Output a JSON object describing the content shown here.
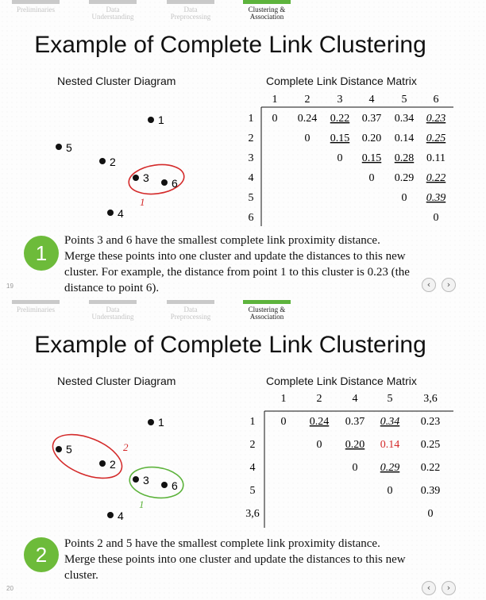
{
  "nav": {
    "items": [
      {
        "label1": "Preliminaries",
        "label2": ""
      },
      {
        "label1": "Data",
        "label2": "Understanding"
      },
      {
        "label1": "Data",
        "label2": "Preprocessing"
      },
      {
        "label1": "Clustering &",
        "label2": "Association"
      }
    ],
    "active_index": 3
  },
  "colors": {
    "accent_green": "#5db33c",
    "badge_green": "#6dbb3a",
    "highlight_red": "#d42a2a",
    "inactive_gray": "#c9c9c9"
  },
  "slides": [
    {
      "page_number": "19",
      "title": "Example of Complete Link Clustering",
      "diagram_title": "Nested Cluster Diagram",
      "matrix_title": "Complete Link Distance Matrix",
      "points": [
        {
          "label": "1"
        },
        {
          "label": "5"
        },
        {
          "label": "2"
        },
        {
          "label": "3"
        },
        {
          "label": "6"
        },
        {
          "label": "4"
        }
      ],
      "clusters": [
        {
          "label": "1",
          "color": "#d42a2a"
        }
      ],
      "matrix": {
        "headers": [
          "1",
          "2",
          "3",
          "4",
          "5",
          "6"
        ],
        "rows": [
          {
            "label": "1",
            "cells": [
              "0",
              "0.24",
              "0.22",
              "0.37",
              "0.34",
              "0.23"
            ]
          },
          {
            "label": "2",
            "cells": [
              "",
              "0",
              "0.15",
              "0.20",
              "0.14",
              "0.25"
            ]
          },
          {
            "label": "3",
            "cells": [
              "",
              "",
              "0",
              "0.15",
              "0.28",
              "0.11"
            ]
          },
          {
            "label": "4",
            "cells": [
              "",
              "",
              "",
              "0",
              "0.29",
              "0.22"
            ]
          },
          {
            "label": "5",
            "cells": [
              "",
              "",
              "",
              "",
              "0",
              "0.39"
            ]
          },
          {
            "label": "6",
            "cells": [
              "",
              "",
              "",
              "",
              "",
              "0"
            ]
          }
        ],
        "underlined": [
          "0-2",
          "1-2",
          "2-3",
          "2-4",
          "0-5",
          "1-5",
          "3-5",
          "4-5"
        ],
        "italic": [
          "0-5",
          "1-5",
          "3-5",
          "4-5"
        ],
        "red": []
      },
      "step_number": "1",
      "description": "Points 3 and 6 have the smallest complete link proximity distance. Merge these points into one cluster and update the distances to this new cluster. For example, the distance from point 1 to this cluster is 0.23 (the distance to point 6).",
      "prev_icon": "‹",
      "next_icon": "›"
    },
    {
      "page_number": "20",
      "title": "Example of Complete Link Clustering",
      "diagram_title": "Nested Cluster Diagram",
      "matrix_title": "Complete Link Distance Matrix",
      "points": [
        {
          "label": "1"
        },
        {
          "label": "5"
        },
        {
          "label": "2"
        },
        {
          "label": "3"
        },
        {
          "label": "6"
        },
        {
          "label": "4"
        }
      ],
      "clusters": [
        {
          "label": "2",
          "color": "#d42a2a"
        },
        {
          "label": "1",
          "color": "#5db33c"
        }
      ],
      "matrix": {
        "headers": [
          "1",
          "2",
          "4",
          "5",
          "3,6"
        ],
        "rows": [
          {
            "label": "1",
            "cells": [
              "0",
              "0.24",
              "0.37",
              "0.34",
              "0.23"
            ]
          },
          {
            "label": "2",
            "cells": [
              "",
              "0",
              "0.20",
              "0.14",
              "0.25"
            ]
          },
          {
            "label": "4",
            "cells": [
              "",
              "",
              "0",
              "0.29",
              "0.22"
            ]
          },
          {
            "label": "5",
            "cells": [
              "",
              "",
              "",
              "0",
              "0.39"
            ]
          },
          {
            "label": "3,6",
            "cells": [
              "",
              "",
              "",
              "",
              "0"
            ]
          }
        ],
        "underlined": [
          "0-1",
          "0-3",
          "1-2",
          "2-3"
        ],
        "italic": [
          "0-3",
          "2-3"
        ],
        "red": [
          "1-3"
        ]
      },
      "step_number": "2",
      "description": "Points 2 and 5 have the smallest complete link proximity distance. Merge these points into one cluster and update the distances to this new cluster.",
      "prev_icon": "‹",
      "next_icon": "›"
    }
  ]
}
